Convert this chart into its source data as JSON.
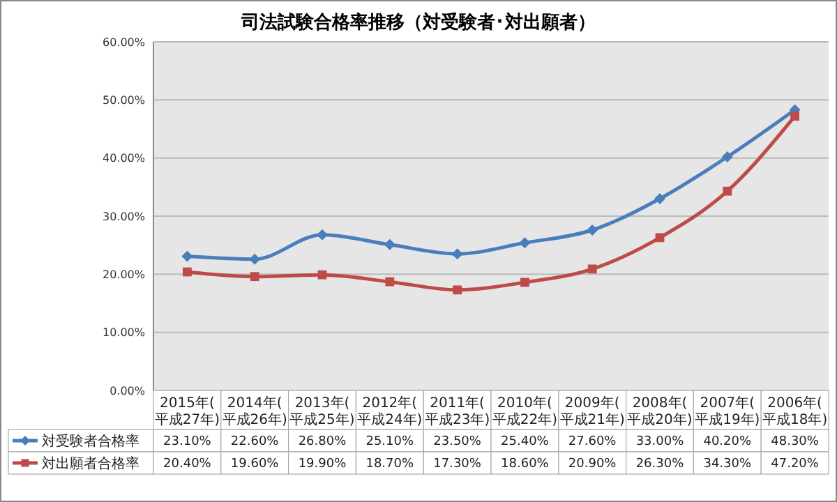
{
  "chart_data": {
    "type": "line",
    "title": "司法試験合格率推移（対受験者･対出願者）",
    "categories": [
      "2015年(平成27年)",
      "2014年(平成26年)",
      "2013年(平成25年)",
      "2012年(平成24年)",
      "2011年(平成23年)",
      "2010年(平成22年)",
      "2009年(平成21年)",
      "2008年(平成20年)",
      "2007年(平成19年)",
      "2006年(平成18年)"
    ],
    "series": [
      {
        "name": "対受験者合格率",
        "color": "#4a7ebb",
        "marker": "diamond",
        "values": [
          23.1,
          22.6,
          26.8,
          25.1,
          23.5,
          25.4,
          27.6,
          33.0,
          40.2,
          48.3
        ],
        "value_labels": [
          "23.10%",
          "22.60%",
          "26.80%",
          "25.10%",
          "23.50%",
          "25.40%",
          "27.60%",
          "33.00%",
          "40.20%",
          "48.30%"
        ]
      },
      {
        "name": "対出願者合格率",
        "color": "#be4b48",
        "marker": "square",
        "values": [
          20.4,
          19.6,
          19.9,
          18.7,
          17.3,
          18.6,
          20.9,
          26.3,
          34.3,
          47.2
        ],
        "value_labels": [
          "20.40%",
          "19.60%",
          "19.90%",
          "18.70%",
          "17.30%",
          "18.60%",
          "20.90%",
          "26.30%",
          "34.30%",
          "47.20%"
        ]
      }
    ],
    "ylim": [
      0,
      60
    ],
    "yticks": [
      {
        "value": 0,
        "label": "0.00%"
      },
      {
        "value": 10,
        "label": "10.00%"
      },
      {
        "value": 20,
        "label": "20.00%"
      },
      {
        "value": 30,
        "label": "30.00%"
      },
      {
        "value": 40,
        "label": "40.00%"
      },
      {
        "value": 50,
        "label": "50.00%"
      },
      {
        "value": 60,
        "label": "60.00%"
      }
    ],
    "grid": "y",
    "legend": "bottom",
    "line_style": "solid"
  }
}
